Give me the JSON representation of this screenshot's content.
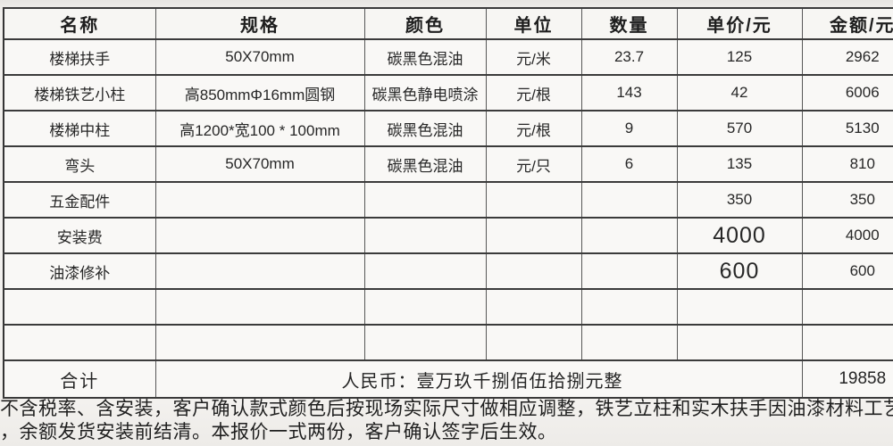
{
  "table": {
    "headers": [
      "名称",
      "规格",
      "颜色",
      "单位",
      "数量",
      "单价/元",
      "金额/元"
    ],
    "rows": [
      {
        "name": "楼梯扶手",
        "spec": "50X70mm",
        "color": "碳黑色混油",
        "unit": "元/米",
        "qty": "23.7",
        "price": "125",
        "amount": "2962"
      },
      {
        "name": "楼梯铁艺小柱",
        "spec": "高850mmΦ16mm圆钢",
        "color": "碳黑色静电喷涂",
        "unit": "元/根",
        "qty": "143",
        "price": "42",
        "amount": "6006"
      },
      {
        "name": "楼梯中柱",
        "spec": "高1200*宽100 * 100mm",
        "color": "碳黑色混油",
        "unit": "元/根",
        "qty": "9",
        "price": "570",
        "amount": "5130"
      },
      {
        "name": "弯头",
        "spec": "50X70mm",
        "color": "碳黑色混油",
        "unit": "元/只",
        "qty": "6",
        "price": "135",
        "amount": "810"
      },
      {
        "name": "五金配件",
        "spec": "",
        "color": "",
        "unit": "",
        "qty": "",
        "price": "350",
        "amount": "350"
      },
      {
        "name": "安装费",
        "spec": "",
        "color": "",
        "unit": "",
        "qty": "",
        "price": "4000",
        "amount": "4000",
        "large_price": true
      },
      {
        "name": "油漆修补",
        "spec": "",
        "color": "",
        "unit": "",
        "qty": "",
        "price": "600",
        "amount": "600",
        "large_price": true
      },
      {
        "name": "",
        "spec": "",
        "color": "",
        "unit": "",
        "qty": "",
        "price": "",
        "amount": ""
      },
      {
        "name": "",
        "spec": "",
        "color": "",
        "unit": "",
        "qty": "",
        "price": "",
        "amount": ""
      }
    ],
    "total_row": {
      "label": "合计",
      "amount_in_words": "人民币：壹万玖千捌佰伍拾捌元整",
      "amount": "19858"
    }
  },
  "footer": {
    "line1": "不含税率、含安装，客户确认款式颜色后按现场实际尺寸做相应调整，铁艺立柱和实木扶手因油漆材料工艺不同",
    "line2": "，余额发货安装前结清。本报价一式两份，客户确认签字后生效。"
  },
  "colors": {
    "background": "#f2f0ed",
    "cell_background": "#f9f8f6",
    "border": "#3b3b3b",
    "text": "#242424"
  }
}
